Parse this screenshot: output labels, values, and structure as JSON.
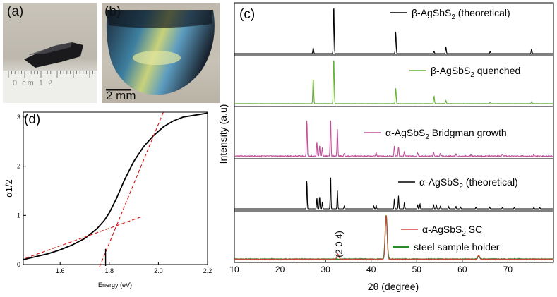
{
  "panels": {
    "a": {
      "label": "(a)"
    },
    "b": {
      "label": "(b)",
      "scale_bar_label": "2 mm"
    },
    "c": {
      "label": "(c)"
    },
    "d": {
      "label": "(d)"
    }
  },
  "ruler_text": "0 cm 1 2",
  "chart_data": [
    {
      "type": "line",
      "panel": "c",
      "title": "",
      "xlabel": "2θ (degree)",
      "ylabel": "Intensity (a.u)",
      "xlim": [
        10,
        80
      ],
      "x_ticks": [
        "10",
        "20",
        "30",
        "40",
        "50",
        "60",
        "70"
      ],
      "grid": false,
      "legend_placement": "per-subpanel top-right",
      "annotation": "(2 0 4)",
      "annotation_x": 32.7,
      "series": [
        {
          "name": "β-AgSbS2 (theoretical)",
          "color": "#000000",
          "peaks": [
            [
              27.3,
              0.12
            ],
            [
              31.8,
              1.0
            ],
            [
              45.4,
              0.45
            ],
            [
              53.8,
              0.05
            ],
            [
              56.4,
              0.14
            ],
            [
              66.1,
              0.04
            ],
            [
              75.2,
              0.1
            ]
          ]
        },
        {
          "name": "β-AgSbS2 quenched",
          "color": "#66b032",
          "peaks": [
            [
              27.3,
              0.55
            ],
            [
              31.8,
              1.0
            ],
            [
              45.4,
              0.33
            ],
            [
              53.8,
              0.16
            ],
            [
              56.4,
              0.07
            ],
            [
              66.1,
              0.03
            ],
            [
              75.2,
              0.04
            ]
          ]
        },
        {
          "name": "α-AgSbS2 Bridgman growth",
          "color": "#c0509a",
          "peaks": [
            [
              25.9,
              0.75
            ],
            [
              28.1,
              0.3
            ],
            [
              28.7,
              0.22
            ],
            [
              29.3,
              0.18
            ],
            [
              31.1,
              0.78
            ],
            [
              32.6,
              0.55
            ],
            [
              34.1,
              0.06
            ],
            [
              41.1,
              0.08
            ],
            [
              45.1,
              0.22
            ],
            [
              46.0,
              0.2
            ],
            [
              47.3,
              0.1
            ],
            [
              50.2,
              0.07
            ],
            [
              53.7,
              0.08
            ],
            [
              55.2,
              0.06
            ],
            [
              58.6,
              0.05
            ],
            [
              61.9,
              0.04
            ],
            [
              68.8,
              0.03
            ],
            [
              75.7,
              0.03
            ]
          ]
        },
        {
          "name": "α-AgSbS2 (theoretical)",
          "color": "#000000",
          "peaks": [
            [
              25.9,
              0.68
            ],
            [
              28.1,
              0.26
            ],
            [
              28.7,
              0.3
            ],
            [
              29.3,
              0.16
            ],
            [
              31.1,
              0.82
            ],
            [
              32.6,
              0.42
            ],
            [
              34.1,
              0.06
            ],
            [
              40.6,
              0.06
            ],
            [
              41.1,
              0.08
            ],
            [
              45.1,
              0.24
            ],
            [
              46.0,
              0.3
            ],
            [
              47.3,
              0.16
            ],
            [
              50.2,
              0.1
            ],
            [
              50.7,
              0.12
            ],
            [
              53.7,
              0.1
            ],
            [
              54.3,
              0.1
            ],
            [
              55.2,
              0.07
            ],
            [
              57.0,
              0.05
            ],
            [
              58.6,
              0.06
            ],
            [
              59.6,
              0.05
            ],
            [
              63.0,
              0.04
            ],
            [
              66.0,
              0.04
            ],
            [
              68.8,
              0.03
            ],
            [
              71.4,
              0.03
            ],
            [
              75.7,
              0.03
            ],
            [
              77.0,
              0.03
            ]
          ]
        },
        {
          "name": "α-AgSbS2 SC",
          "color": "#d94040",
          "peaks": [
            [
              32.7,
              0.12
            ],
            [
              43.3,
              1.0
            ],
            [
              63.6,
              0.09
            ]
          ]
        },
        {
          "name": "steel sample holder",
          "color": "#2a8a2a",
          "peaks": [
            [
              43.3,
              1.0
            ],
            [
              63.6,
              0.07
            ]
          ]
        }
      ]
    },
    {
      "type": "line",
      "panel": "d",
      "title": "",
      "xlabel": "Energy (eV)",
      "ylabel": "α1/2",
      "xlim": [
        1.45,
        2.2
      ],
      "ylim": [
        0,
        3.1
      ],
      "x_ticks": [
        "1.6",
        "1.8",
        "2.0",
        "2.2"
      ],
      "y_ticks": [
        "0",
        "1",
        "2",
        "3"
      ],
      "grid": false,
      "series": [
        {
          "name": "",
          "color": "#000000",
          "x": [
            1.45,
            1.5,
            1.55,
            1.6,
            1.65,
            1.7,
            1.75,
            1.78,
            1.8,
            1.83,
            1.86,
            1.9,
            1.94,
            1.98,
            2.02,
            2.06,
            2.1,
            2.15,
            2.2
          ],
          "y": [
            0.1,
            0.16,
            0.22,
            0.3,
            0.4,
            0.53,
            0.73,
            0.9,
            1.05,
            1.35,
            1.7,
            2.1,
            2.4,
            2.62,
            2.8,
            2.92,
            3.0,
            3.04,
            3.08
          ]
        },
        {
          "name": "",
          "color": "#d62020",
          "style": "dashed",
          "x": [
            1.76,
            2.02
          ],
          "y": [
            -0.05,
            3.1
          ]
        },
        {
          "name": "",
          "color": "#d62020",
          "style": "dashed",
          "x": [
            1.46,
            1.93
          ],
          "y": [
            0.13,
            0.97
          ]
        }
      ]
    }
  ]
}
